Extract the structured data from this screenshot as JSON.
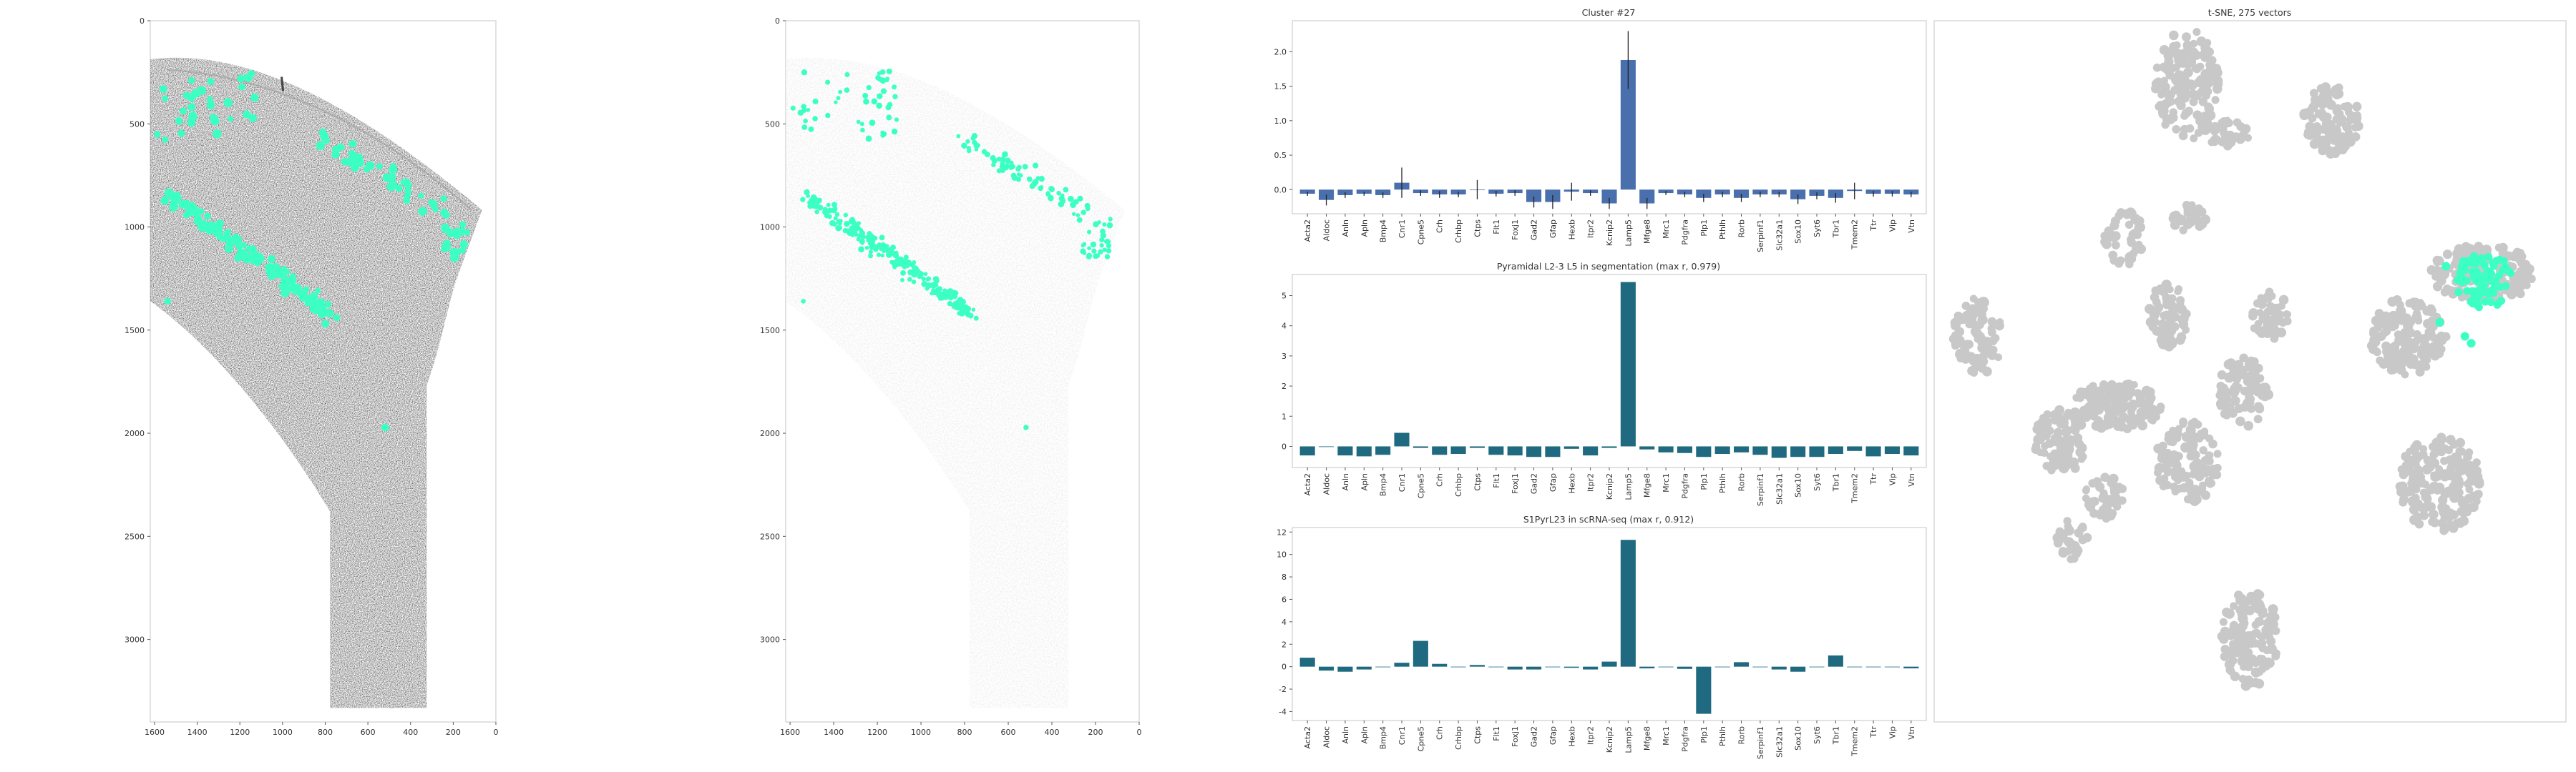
{
  "colors": {
    "highlight": "#3cffc4",
    "cells_faint": "#bdbdbd",
    "segmentation": "#d9d9d9",
    "tsne_points": "#c8c8c8",
    "cluster_bars": "#4a6fad",
    "profile_bars": "#1f6a80"
  },
  "chart_data": [
    {
      "id": "tissue_raw",
      "type": "scatter",
      "xticks": [
        "1600",
        "1400",
        "1200",
        "1000",
        "800",
        "600",
        "400",
        "200",
        "0"
      ],
      "yticks": [
        "0",
        "500",
        "1000",
        "1500",
        "2000",
        "2500",
        "3000"
      ],
      "xlim": [
        1620,
        0
      ],
      "ylim": [
        3400,
        0
      ],
      "highlight_color": "#3cffc4"
    },
    {
      "id": "tissue_segmentation",
      "type": "scatter",
      "xticks": [
        "1600",
        "1400",
        "1200",
        "1000",
        "800",
        "600",
        "400",
        "200",
        "0"
      ],
      "yticks": [
        "0",
        "500",
        "1000",
        "1500",
        "2000",
        "2500",
        "3000"
      ],
      "xlim": [
        1620,
        0
      ],
      "ylim": [
        3400,
        0
      ],
      "highlight_color": "#3cffc4"
    },
    {
      "id": "cluster",
      "type": "bar",
      "title": "Cluster #27",
      "categories": [
        "Acta2",
        "Aldoc",
        "Anln",
        "Apln",
        "Bmp4",
        "Cnr1",
        "Cpne5",
        "Crh",
        "Crhbp",
        "Ctps",
        "Flt1",
        "Foxj1",
        "Gad2",
        "Gfap",
        "Hexb",
        "Itpr2",
        "Kcnip2",
        "Lamp5",
        "Mfge8",
        "Mrc1",
        "Pdgfra",
        "Plp1",
        "Pthlh",
        "Rorb",
        "Serpinf1",
        "Slc32a1",
        "Sox10",
        "Syt6",
        "Tbr1",
        "Tmem2",
        "Ttr",
        "Vip",
        "Vtn"
      ],
      "values": [
        -0.06,
        -0.15,
        -0.08,
        -0.06,
        -0.08,
        0.1,
        -0.05,
        -0.07,
        -0.07,
        0.0,
        -0.06,
        -0.05,
        -0.18,
        -0.18,
        -0.03,
        -0.05,
        -0.2,
        1.88,
        -0.2,
        -0.05,
        -0.07,
        -0.12,
        -0.07,
        -0.12,
        -0.07,
        -0.07,
        -0.14,
        -0.09,
        -0.12,
        -0.02,
        -0.06,
        -0.06,
        -0.07
      ],
      "errors": [
        0.03,
        0.08,
        0.04,
        0.03,
        0.04,
        0.22,
        0.04,
        0.05,
        0.04,
        0.14,
        0.04,
        0.04,
        0.08,
        0.1,
        0.13,
        0.04,
        0.08,
        0.42,
        0.08,
        0.03,
        0.04,
        0.06,
        0.04,
        0.06,
        0.04,
        0.04,
        0.07,
        0.05,
        0.07,
        0.12,
        0.04,
        0.04,
        0.04
      ],
      "yticks": [
        "0.0",
        "0.5",
        "1.0",
        "1.5",
        "2.0"
      ],
      "ylim": [
        -0.35,
        2.45
      ]
    },
    {
      "id": "segmentation_profile",
      "type": "bar",
      "title": "Pyramidal L2-3 L5 in segmentation (max r, 0.979)",
      "categories": [
        "Acta2",
        "Aldoc",
        "Anln",
        "Apln",
        "Bmp4",
        "Cnr1",
        "Cpne5",
        "Crh",
        "Crhbp",
        "Ctps",
        "Flt1",
        "Foxj1",
        "Gad2",
        "Gfap",
        "Hexb",
        "Itpr2",
        "Kcnip2",
        "Lamp5",
        "Mfge8",
        "Mrc1",
        "Pdgfra",
        "Plp1",
        "Pthlh",
        "Rorb",
        "Serpinf1",
        "Slc32a1",
        "Sox10",
        "Syt6",
        "Tbr1",
        "Tmem2",
        "Ttr",
        "Vip",
        "Vtn"
      ],
      "values": [
        -0.3,
        -0.02,
        -0.3,
        -0.33,
        -0.28,
        0.45,
        -0.05,
        -0.28,
        -0.25,
        -0.05,
        -0.28,
        -0.3,
        -0.35,
        -0.35,
        -0.08,
        -0.3,
        -0.05,
        5.45,
        -0.1,
        -0.2,
        -0.22,
        -0.35,
        -0.25,
        -0.2,
        -0.28,
        -0.38,
        -0.35,
        -0.35,
        -0.25,
        -0.15,
        -0.33,
        -0.25,
        -0.3
      ],
      "yticks": [
        "0",
        "1",
        "2",
        "3",
        "4",
        "5"
      ],
      "ylim": [
        -0.7,
        5.7
      ]
    },
    {
      "id": "scrnaseq_profile",
      "type": "bar",
      "title": "S1PyrL23 in scRNA-seq (max r, 0.912)",
      "categories": [
        "Acta2",
        "Aldoc",
        "Anln",
        "Apln",
        "Bmp4",
        "Cnr1",
        "Cpne5",
        "Crh",
        "Crhbp",
        "Ctps",
        "Flt1",
        "Foxj1",
        "Gad2",
        "Gfap",
        "Hexb",
        "Itpr2",
        "Kcnip2",
        "Lamp5",
        "Mfge8",
        "Mrc1",
        "Pdgfra",
        "Plp1",
        "Pthlh",
        "Rorb",
        "Serpinf1",
        "Slc32a1",
        "Sox10",
        "Syt6",
        "Tbr1",
        "Tmem2",
        "Ttr",
        "Vip",
        "Vtn"
      ],
      "values": [
        0.8,
        -0.35,
        -0.45,
        -0.25,
        0.0,
        0.35,
        2.3,
        0.25,
        0.0,
        0.15,
        0.0,
        -0.25,
        -0.25,
        0.0,
        -0.1,
        -0.25,
        0.45,
        11.3,
        -0.15,
        0.0,
        -0.2,
        -4.2,
        0.0,
        0.4,
        0.0,
        -0.25,
        -0.45,
        0.0,
        1.0,
        -0.05,
        0.0,
        0.0,
        -0.15
      ],
      "yticks": [
        "-4",
        "-2",
        "0",
        "2",
        "4",
        "6",
        "8",
        "10",
        "12"
      ],
      "ylim": [
        -4.8,
        12.4
      ]
    },
    {
      "id": "tsne",
      "type": "scatter",
      "title": "t-SNE, 275 vectors",
      "point_color": "#c8c8c8",
      "highlight_color": "#3cffc4",
      "grid": false
    }
  ]
}
